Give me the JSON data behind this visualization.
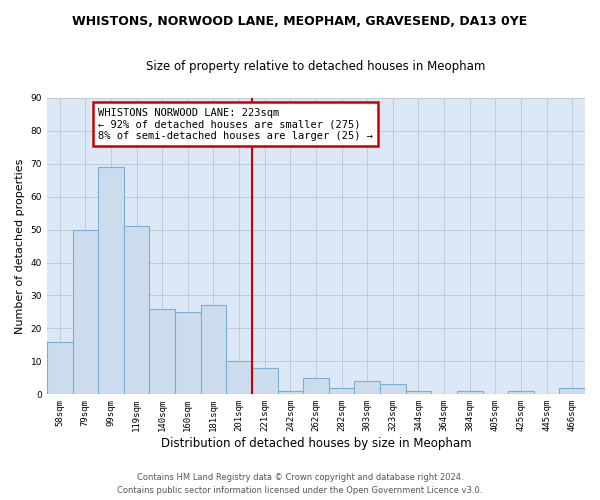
{
  "title": "WHISTONS, NORWOOD LANE, MEOPHAM, GRAVESEND, DA13 0YE",
  "subtitle": "Size of property relative to detached houses in Meopham",
  "xlabel": "Distribution of detached houses by size in Meopham",
  "ylabel": "Number of detached properties",
  "categories": [
    "58sqm",
    "79sqm",
    "99sqm",
    "119sqm",
    "140sqm",
    "160sqm",
    "181sqm",
    "201sqm",
    "221sqm",
    "242sqm",
    "262sqm",
    "282sqm",
    "303sqm",
    "323sqm",
    "344sqm",
    "364sqm",
    "384sqm",
    "405sqm",
    "425sqm",
    "445sqm",
    "466sqm"
  ],
  "values": [
    16,
    50,
    69,
    51,
    26,
    25,
    27,
    10,
    8,
    1,
    5,
    2,
    4,
    3,
    1,
    0,
    1,
    0,
    1,
    0,
    2
  ],
  "bar_color": "#ccdcee",
  "bar_edge_color": "#7aafd4",
  "vline_x": 7.5,
  "vline_color": "#cc0000",
  "annotation_title": "WHISTONS NORWOOD LANE: 223sqm",
  "annotation_line1": "← 92% of detached houses are smaller (275)",
  "annotation_line2": "8% of semi-detached houses are larger (25) →",
  "annotation_box_color": "#ffffff",
  "annotation_box_edge": "#cc0000",
  "ylim": [
    0,
    90
  ],
  "yticks": [
    0,
    10,
    20,
    30,
    40,
    50,
    60,
    70,
    80,
    90
  ],
  "footer_line1": "Contains HM Land Registry data © Crown copyright and database right 2024.",
  "footer_line2": "Contains public sector information licensed under the Open Government Licence v3.0.",
  "fig_bg_color": "#ffffff",
  "plot_bg_color": "#dce8f5"
}
